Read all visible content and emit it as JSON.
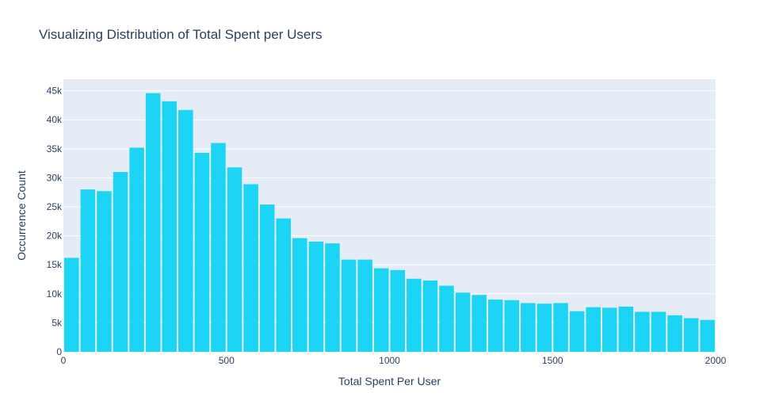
{
  "chart_data": {
    "type": "bar",
    "title": "Visualizing Distribution of Total Spent per Users",
    "xlabel": "Total Spent Per User",
    "ylabel": "Occurrence Count",
    "xlim": [
      0,
      2000
    ],
    "ylim": [
      0,
      47000
    ],
    "bin_width": 50,
    "bar_color": "#1cd4f3",
    "plot_bg": "#e5ecf6",
    "grid": true,
    "x_ticks": [
      {
        "value": 0,
        "label": "0"
      },
      {
        "value": 500,
        "label": "500"
      },
      {
        "value": 1000,
        "label": "1000"
      },
      {
        "value": 1500,
        "label": "1500"
      },
      {
        "value": 2000,
        "label": "2000"
      }
    ],
    "y_ticks": [
      {
        "value": 0,
        "label": "0"
      },
      {
        "value": 5000,
        "label": "5k"
      },
      {
        "value": 10000,
        "label": "10k"
      },
      {
        "value": 15000,
        "label": "15k"
      },
      {
        "value": 20000,
        "label": "20k"
      },
      {
        "value": 25000,
        "label": "25k"
      },
      {
        "value": 30000,
        "label": "30k"
      },
      {
        "value": 35000,
        "label": "35k"
      },
      {
        "value": 40000,
        "label": "40k"
      },
      {
        "value": 45000,
        "label": "45k"
      }
    ],
    "bins": [
      0,
      50,
      100,
      150,
      200,
      250,
      300,
      350,
      400,
      450,
      500,
      550,
      600,
      650,
      700,
      750,
      800,
      850,
      900,
      950,
      1000,
      1050,
      1100,
      1150,
      1200,
      1250,
      1300,
      1350,
      1400,
      1450,
      1500,
      1550,
      1600,
      1650,
      1700,
      1750,
      1800,
      1850,
      1900,
      1950
    ],
    "values": [
      16200,
      28000,
      27700,
      31000,
      35200,
      44600,
      43200,
      41700,
      34300,
      36000,
      31800,
      28900,
      25400,
      23000,
      19600,
      19000,
      18700,
      15900,
      15900,
      14400,
      14100,
      12600,
      12300,
      11400,
      10200,
      9800,
      9000,
      8900,
      8400,
      8300,
      8400,
      7000,
      7700,
      7600,
      7800,
      6900,
      6900,
      6300,
      5800,
      5500
    ]
  }
}
